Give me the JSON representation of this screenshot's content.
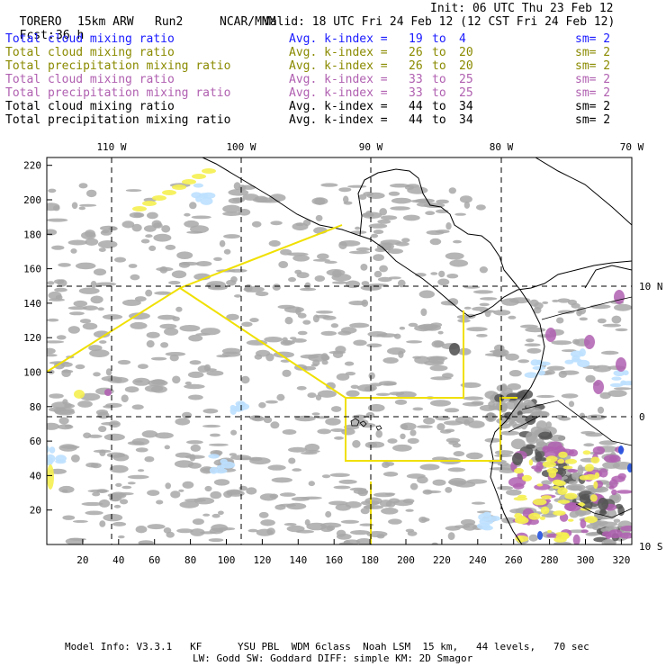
{
  "header": {
    "model": "TORERO",
    "resolution": "15km ARW",
    "run": "Run2",
    "org": "NCAR/MMM",
    "init": "Init: 06 UTC Thu 23 Feb 12",
    "fcst_label": "Fcst:",
    "fcst_value": "36 h",
    "valid": "Valid: 18 UTC Fri 24 Feb 12 (12 CST Fri 24 Feb 12)"
  },
  "legend": [
    {
      "variable": "Total cloud mixing ratio",
      "avg_label": "Avg. k-index =",
      "from": "19",
      "to_word": "to",
      "to": "4",
      "sm": "sm= 2",
      "color": "#1a1aff"
    },
    {
      "variable": "Total cloud mixing ratio",
      "avg_label": "Avg. k-index =",
      "from": "26",
      "to_word": "to",
      "to": "20",
      "sm": "sm= 2",
      "color": "#8a8a00"
    },
    {
      "variable": "Total precipitation mixing ratio",
      "avg_label": "Avg. k-index =",
      "from": "26",
      "to_word": "to",
      "to": "20",
      "sm": "sm= 2",
      "color": "#8a8a00"
    },
    {
      "variable": "Total cloud mixing ratio",
      "avg_label": "Avg. k-index =",
      "from": "33",
      "to_word": "to",
      "to": "25",
      "sm": "sm= 2",
      "color": "#b060b0"
    },
    {
      "variable": "Total precipitation mixing ratio",
      "avg_label": "Avg. k-index =",
      "from": "33",
      "to_word": "to",
      "to": "25",
      "sm": "sm= 2",
      "color": "#b060b0"
    },
    {
      "variable": "Total cloud mixing ratio",
      "avg_label": "Avg. k-index =",
      "from": "44",
      "to_word": "to",
      "to": "34",
      "sm": "sm= 2",
      "color": "#000000"
    },
    {
      "variable": "Total precipitation mixing ratio",
      "avg_label": "Avg. k-index =",
      "from": "44",
      "to_word": "to",
      "to": "34",
      "sm": "sm= 2",
      "color": "#000000"
    }
  ],
  "map": {
    "lon_labels": [
      "110 W",
      "100 W",
      "90 W",
      "80 W",
      "70 W"
    ],
    "lat_labels": [
      "10 N",
      "0",
      "10 S"
    ],
    "x_ticks": [
      "20",
      "40",
      "60",
      "80",
      "100",
      "120",
      "140",
      "160",
      "180",
      "200",
      "220",
      "240",
      "260",
      "280",
      "300",
      "320"
    ],
    "y_ticks": [
      "20",
      "40",
      "60",
      "80",
      "100",
      "120",
      "140",
      "160",
      "180",
      "200",
      "220"
    ],
    "colors": {
      "cloud_gray": "#a8a8a8",
      "dark_gray": "#555555",
      "yellow": "#f5f050",
      "light_blue": "#bde0ff",
      "blue": "#2050e0",
      "purple": "#b060b0",
      "coast": "#000000"
    }
  },
  "footer": {
    "line1": "Model Info: V3.3.1   KF      YSU PBL  WDM 6class  Noah LSM  15 km,   44 levels,   70 sec",
    "line2": "LW: Godd SW: Goddard DIFF: simple KM: 2D Smagor"
  }
}
